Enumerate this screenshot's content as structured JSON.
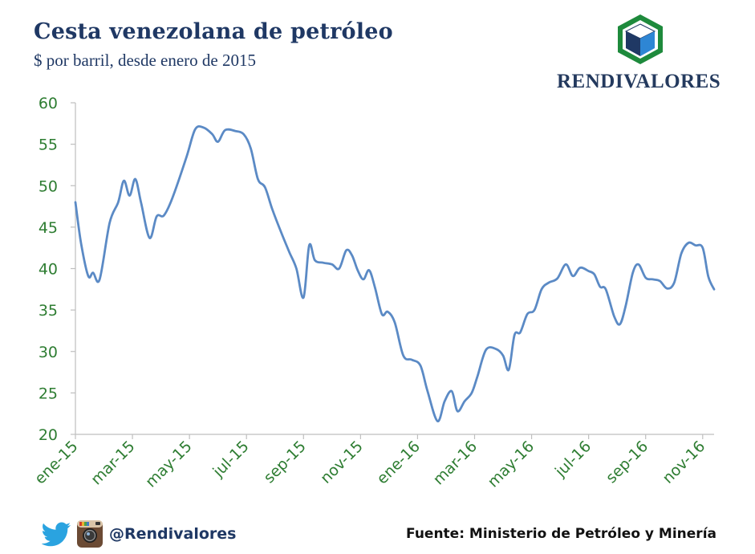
{
  "header": {
    "title": "Cesta venezolana de petróleo",
    "subtitle": "$ por barril, desde enero de 2015"
  },
  "brand": {
    "name": "RENDIVALORES",
    "colors": {
      "green": "#1e8a3c",
      "blue": "#2e86d4",
      "navy": "#1f3864"
    }
  },
  "footer": {
    "handle": "@Rendivalores",
    "source": "Fuente: Ministerio de Petróleo y Minería",
    "icons": [
      "twitter-icon",
      "instagram-icon"
    ]
  },
  "chart_data": {
    "type": "line",
    "ylim": [
      20,
      60
    ],
    "yticks": [
      20,
      25,
      30,
      35,
      40,
      45,
      50,
      55,
      60
    ],
    "xlim": [
      0,
      22.4
    ],
    "xticks": [
      {
        "label": "ene-15",
        "pos": 0
      },
      {
        "label": "mar-15",
        "pos": 2
      },
      {
        "label": "may-15",
        "pos": 4
      },
      {
        "label": "jul-15",
        "pos": 6
      },
      {
        "label": "sep-15",
        "pos": 8
      },
      {
        "label": "nov-15",
        "pos": 10
      },
      {
        "label": "ene-16",
        "pos": 12
      },
      {
        "label": "mar-16",
        "pos": 14
      },
      {
        "label": "may-16",
        "pos": 16
      },
      {
        "label": "jul-16",
        "pos": 18
      },
      {
        "label": "sep-16",
        "pos": 20
      },
      {
        "label": "nov-16",
        "pos": 22
      }
    ],
    "colors": {
      "line": "#5b8ac5",
      "tick_label": "#2e7d32",
      "axis": "#bfbfbf"
    },
    "series": [
      {
        "values": [
          [
            0.0,
            48.0
          ],
          [
            0.2,
            43.0
          ],
          [
            0.45,
            39.1
          ],
          [
            0.62,
            39.5
          ],
          [
            0.85,
            38.7
          ],
          [
            1.2,
            45.5
          ],
          [
            1.5,
            48.0
          ],
          [
            1.7,
            50.6
          ],
          [
            1.9,
            48.8
          ],
          [
            2.1,
            50.8
          ],
          [
            2.3,
            48.0
          ],
          [
            2.6,
            43.7
          ],
          [
            2.85,
            46.3
          ],
          [
            3.1,
            46.4
          ],
          [
            3.4,
            48.5
          ],
          [
            3.9,
            53.5
          ],
          [
            4.2,
            56.8
          ],
          [
            4.5,
            57.0
          ],
          [
            4.8,
            56.2
          ],
          [
            5.0,
            55.3
          ],
          [
            5.25,
            56.7
          ],
          [
            5.6,
            56.6
          ],
          [
            5.9,
            56.2
          ],
          [
            6.15,
            54.5
          ],
          [
            6.4,
            50.8
          ],
          [
            6.65,
            49.8
          ],
          [
            6.9,
            47.2
          ],
          [
            7.2,
            44.5
          ],
          [
            7.5,
            42.0
          ],
          [
            7.75,
            40.0
          ],
          [
            8.0,
            36.5
          ],
          [
            8.2,
            42.8
          ],
          [
            8.4,
            41.0
          ],
          [
            8.7,
            40.7
          ],
          [
            9.0,
            40.5
          ],
          [
            9.25,
            40.0
          ],
          [
            9.5,
            42.2
          ],
          [
            9.7,
            41.6
          ],
          [
            9.9,
            39.8
          ],
          [
            10.1,
            38.7
          ],
          [
            10.3,
            39.8
          ],
          [
            10.5,
            37.8
          ],
          [
            10.75,
            34.5
          ],
          [
            10.95,
            34.8
          ],
          [
            11.2,
            33.5
          ],
          [
            11.5,
            29.5
          ],
          [
            11.8,
            29.0
          ],
          [
            12.1,
            28.3
          ],
          [
            12.35,
            25.2
          ],
          [
            12.7,
            21.6
          ],
          [
            12.95,
            24.0
          ],
          [
            13.2,
            25.2
          ],
          [
            13.4,
            22.8
          ],
          [
            13.65,
            24.0
          ],
          [
            13.9,
            25.0
          ],
          [
            14.1,
            27.0
          ],
          [
            14.4,
            30.2
          ],
          [
            14.75,
            30.3
          ],
          [
            15.0,
            29.5
          ],
          [
            15.2,
            27.8
          ],
          [
            15.4,
            32.0
          ],
          [
            15.6,
            32.3
          ],
          [
            15.85,
            34.5
          ],
          [
            16.1,
            35.0
          ],
          [
            16.35,
            37.5
          ],
          [
            16.6,
            38.3
          ],
          [
            16.9,
            38.8
          ],
          [
            17.2,
            40.5
          ],
          [
            17.45,
            39.1
          ],
          [
            17.7,
            40.1
          ],
          [
            18.0,
            39.7
          ],
          [
            18.2,
            39.3
          ],
          [
            18.4,
            37.8
          ],
          [
            18.6,
            37.5
          ],
          [
            18.9,
            34.2
          ],
          [
            19.1,
            33.3
          ],
          [
            19.3,
            35.5
          ],
          [
            19.55,
            39.5
          ],
          [
            19.75,
            40.5
          ],
          [
            20.0,
            38.9
          ],
          [
            20.25,
            38.7
          ],
          [
            20.5,
            38.5
          ],
          [
            20.75,
            37.6
          ],
          [
            21.0,
            38.3
          ],
          [
            21.25,
            41.8
          ],
          [
            21.5,
            43.1
          ],
          [
            21.75,
            42.8
          ],
          [
            22.0,
            42.5
          ],
          [
            22.2,
            39.0
          ],
          [
            22.4,
            37.5
          ]
        ]
      }
    ]
  }
}
